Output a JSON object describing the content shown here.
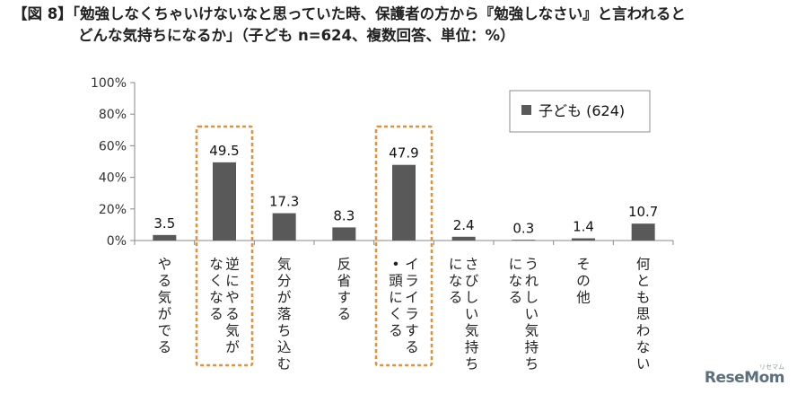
{
  "title": {
    "line1": "【図 8】「勉強しなくちゃいけないなと思っていた時、保護者の方から『勉強しなさい』と言われると",
    "line2": "どんな気持ちになるか」（子ども n=624、複数回答、単位：%）"
  },
  "chart_data": {
    "type": "bar",
    "categories": [
      "やる気がでる",
      "逆にやる気がなくなる",
      "気分が落ち込む",
      "反省する",
      "イライラする・頭にくる",
      "さびしい気持ちになる",
      "うれしい気持ちになる",
      "その他",
      "何とも思わない"
    ],
    "category_lines": [
      [
        "やる気がでる"
      ],
      [
        "逆にやる気が",
        "なくなる"
      ],
      [
        "気分が落ち込む"
      ],
      [
        "反省する"
      ],
      [
        "イライラする",
        "・頭にくる"
      ],
      [
        "さびしい気持ち",
        "になる"
      ],
      [
        "うれしい気持ち",
        "になる"
      ],
      [
        "その他"
      ],
      [
        "何とも思わない"
      ]
    ],
    "series": [
      {
        "name": "子ども (624)",
        "values": [
          3.5,
          49.5,
          17.3,
          8.3,
          47.9,
          2.4,
          0.3,
          1.4,
          10.7
        ]
      }
    ],
    "value_labels": [
      "3.5",
      "49.5",
      "17.3",
      "8.3",
      "47.9",
      "2.4",
      "0.3",
      "1.4",
      "10.7"
    ],
    "ylim": [
      0,
      100
    ],
    "yticks": [
      "0%",
      "20%",
      "40%",
      "60%",
      "80%",
      "100%"
    ],
    "highlighted": [
      "逆にやる気がなくなる",
      "イライラする・頭にくる"
    ],
    "grid": false,
    "legend_position": "top-right",
    "bar_color": "#595959",
    "highlight_color": "#e0913a"
  },
  "brand": {
    "name": "ReseMom",
    "sub": "リセマム"
  }
}
